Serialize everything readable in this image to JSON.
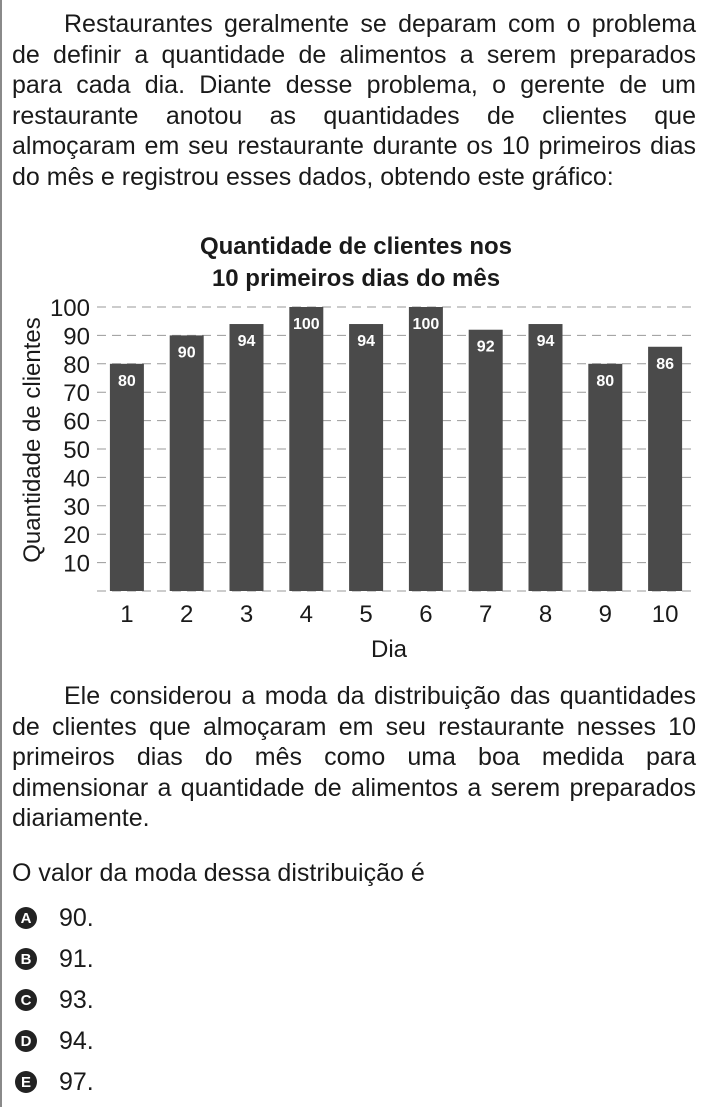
{
  "intro_paragraph": "Restaurantes geralmente se deparam com o problema de definir a quantidade de alimentos a serem preparados para cada dia. Diante desse problema, o gerente de um restaurante anotou as quantidades de clientes que almoçaram em seu restaurante durante os 10 primeiros dias do mês e registrou esses dados, obtendo este gráfico:",
  "chart_data": {
    "type": "bar",
    "title_lines": [
      "Quantidade de clientes nos",
      "10 primeiros dias do mês"
    ],
    "xlabel": "Dia",
    "ylabel": "Quantidade de clientes",
    "categories": [
      "1",
      "2",
      "3",
      "4",
      "5",
      "6",
      "7",
      "8",
      "9",
      "10"
    ],
    "values": [
      80,
      90,
      94,
      100,
      94,
      100,
      92,
      94,
      80,
      86
    ],
    "data_labels": [
      "80",
      "90",
      "94",
      "100",
      "94",
      "100",
      "92",
      "94",
      "80",
      "86"
    ],
    "y_ticks": [
      "10",
      "20",
      "30",
      "40",
      "50",
      "60",
      "70",
      "80",
      "90",
      "100"
    ],
    "ylim": [
      0,
      100
    ],
    "grid": "dashed horizontal",
    "bar_color": "#4a4a4a",
    "label_color": "#ffffff"
  },
  "follow_paragraph": "Ele considerou a moda da distribuição das quantidades de clientes que almoçaram em seu restaurante nesses 10 primeiros dias do mês como uma boa medida para dimensionar a quantidade de alimentos a serem preparados diariamente.",
  "question": "O valor da moda dessa distribuição é",
  "options": [
    {
      "letter": "A",
      "text": "90."
    },
    {
      "letter": "B",
      "text": "91."
    },
    {
      "letter": "C",
      "text": "93."
    },
    {
      "letter": "D",
      "text": "94."
    },
    {
      "letter": "E",
      "text": "97."
    }
  ]
}
